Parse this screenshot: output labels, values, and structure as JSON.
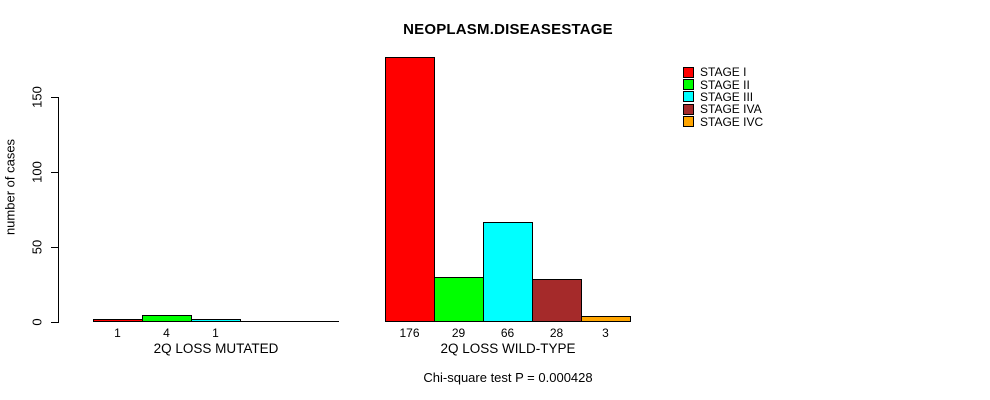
{
  "chart_data": {
    "type": "bar",
    "title": "NEOPLASM.DISEASESTAGE",
    "ylabel": "number of cases",
    "xlabel": "",
    "yticks": [
      0,
      50,
      100,
      150
    ],
    "ylim": [
      0,
      176
    ],
    "grid": false,
    "legend_position": "top-right",
    "categories": [
      "2Q LOSS MUTATED",
      "2Q LOSS WILD-TYPE"
    ],
    "series": [
      {
        "name": "STAGE I",
        "color": "#FF0000",
        "values": [
          1,
          176
        ]
      },
      {
        "name": "STAGE II",
        "color": "#00FF00",
        "values": [
          4,
          29
        ]
      },
      {
        "name": "STAGE III",
        "color": "#00FFFF",
        "values": [
          1,
          66
        ]
      },
      {
        "name": "STAGE IVA",
        "color": "#A52A2A",
        "values": [
          0,
          28
        ]
      },
      {
        "name": "STAGE IVC",
        "color": "#FFA500",
        "values": [
          0,
          3
        ]
      }
    ],
    "bar_value_labels": [
      [
        "1",
        "4",
        "1",
        "",
        ""
      ],
      [
        "176",
        "29",
        "66",
        "28",
        "3"
      ]
    ],
    "annotation": "Chi-square test P = 0.000428"
  }
}
